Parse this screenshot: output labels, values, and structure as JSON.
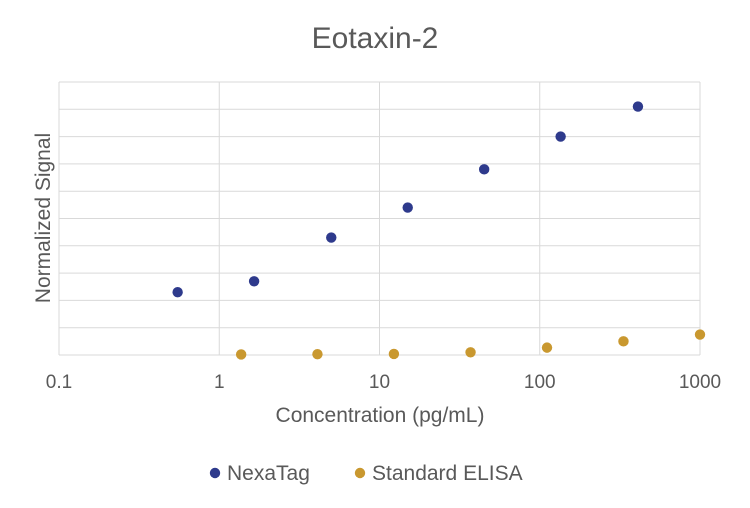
{
  "chart_data": {
    "type": "scatter",
    "title": "Eotaxin-2",
    "xlabel": "Concentration (pg/mL)",
    "ylabel": "Normalized Signal",
    "x_scale": "log",
    "xlim": [
      0.1,
      1000
    ],
    "x_ticks": [
      0.1,
      1,
      10,
      100,
      1000
    ],
    "x_tick_labels": [
      "0.1",
      "1",
      "10",
      "100",
      "1000"
    ],
    "ylim": [
      0,
      10
    ],
    "y_gridlines": 10,
    "y_tick_labels_shown": false,
    "grid": true,
    "legend_position": "bottom",
    "series": [
      {
        "name": "NexaTag",
        "color": "#2e3a8c",
        "x": [
          0.55,
          1.65,
          5,
          15,
          45,
          135,
          410
        ],
        "y": [
          2.3,
          2.7,
          4.3,
          5.4,
          6.8,
          8.0,
          9.1
        ]
      },
      {
        "name": "Standard ELISA",
        "color": "#c9982f",
        "x": [
          1.37,
          4.1,
          12.3,
          37,
          111,
          333,
          1000
        ],
        "y": [
          0.02,
          0.03,
          0.04,
          0.1,
          0.27,
          0.5,
          0.75
        ]
      }
    ]
  }
}
